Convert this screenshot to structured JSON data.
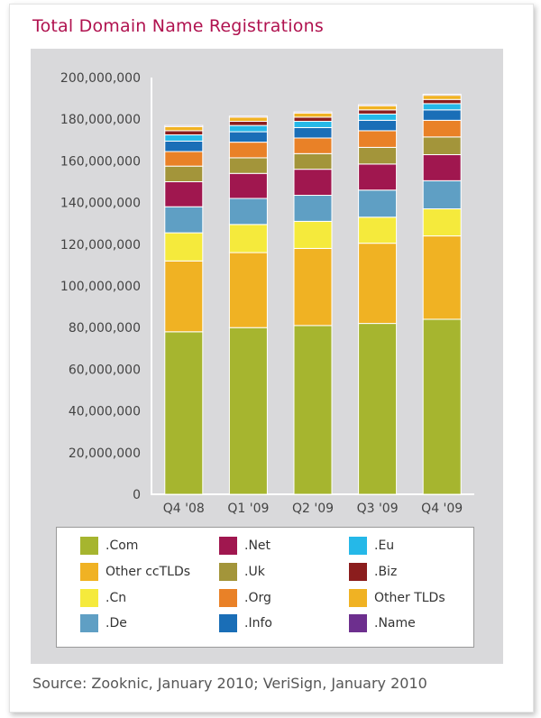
{
  "title": "Total Domain Name Registrations",
  "source": "Source: Zooknic, January 2010; VeriSign, January 2010",
  "chart_data": {
    "type": "bar",
    "stacked": true,
    "categories": [
      "Q4 '08",
      "Q1 '09",
      "Q2 '09",
      "Q3 '09",
      "Q4 '09"
    ],
    "ylim": [
      0,
      200000000
    ],
    "yticks": [
      "0",
      "20,000,000",
      "40,000,000",
      "60,000,000",
      "80,000,000",
      "100,000,000",
      "120,000,000",
      "140,000,000",
      "160,000,000",
      "180,000,000",
      "200,000,000"
    ],
    "grid": false,
    "series": [
      {
        "name": ".Com",
        "color": "#a6b52f",
        "values": [
          78000000,
          80000000,
          81000000,
          82000000,
          84000000
        ]
      },
      {
        "name": "Other ccTLDs",
        "color": "#f0b223",
        "values": [
          34000000,
          36000000,
          37000000,
          38500000,
          40000000
        ]
      },
      {
        "name": ".Cn",
        "color": "#f5ea3c",
        "values": [
          13500000,
          13500000,
          13000000,
          12500000,
          13000000
        ]
      },
      {
        "name": ".De",
        "color": "#5f9fc4",
        "values": [
          12500000,
          12500000,
          12500000,
          13000000,
          13500000
        ]
      },
      {
        "name": ".Net",
        "color": "#a0174f",
        "values": [
          12000000,
          12000000,
          12500000,
          12500000,
          12500000
        ]
      },
      {
        "name": ".Uk",
        "color": "#a3953a",
        "values": [
          7500000,
          7500000,
          7500000,
          8000000,
          8500000
        ]
      },
      {
        "name": ".Org",
        "color": "#e98127",
        "values": [
          7000000,
          7500000,
          7500000,
          8000000,
          8000000
        ]
      },
      {
        "name": ".Info",
        "color": "#1a6eb7",
        "values": [
          5000000,
          5000000,
          5000000,
          5000000,
          5000000
        ]
      },
      {
        "name": ".Eu",
        "color": "#25b8e8",
        "values": [
          3000000,
          3000000,
          3000000,
          3000000,
          3000000
        ]
      },
      {
        "name": ".Biz",
        "color": "#8b1d1d",
        "values": [
          2000000,
          2000000,
          2000000,
          2000000,
          2000000
        ]
      },
      {
        "name": "Other TLDs",
        "color": "#f0b223",
        "values": [
          2000000,
          2000000,
          2000000,
          2000000,
          2000000
        ]
      },
      {
        "name": ".Name",
        "color": "#6d2f8e",
        "values": [
          500000,
          500000,
          500000,
          500000,
          500000
        ]
      }
    ],
    "legend_order": [
      ".Com",
      "Other ccTLDs",
      ".Cn",
      ".De",
      ".Net",
      ".Uk",
      ".Org",
      ".Info",
      ".Eu",
      ".Biz",
      "Other TLDs",
      ".Name"
    ]
  }
}
